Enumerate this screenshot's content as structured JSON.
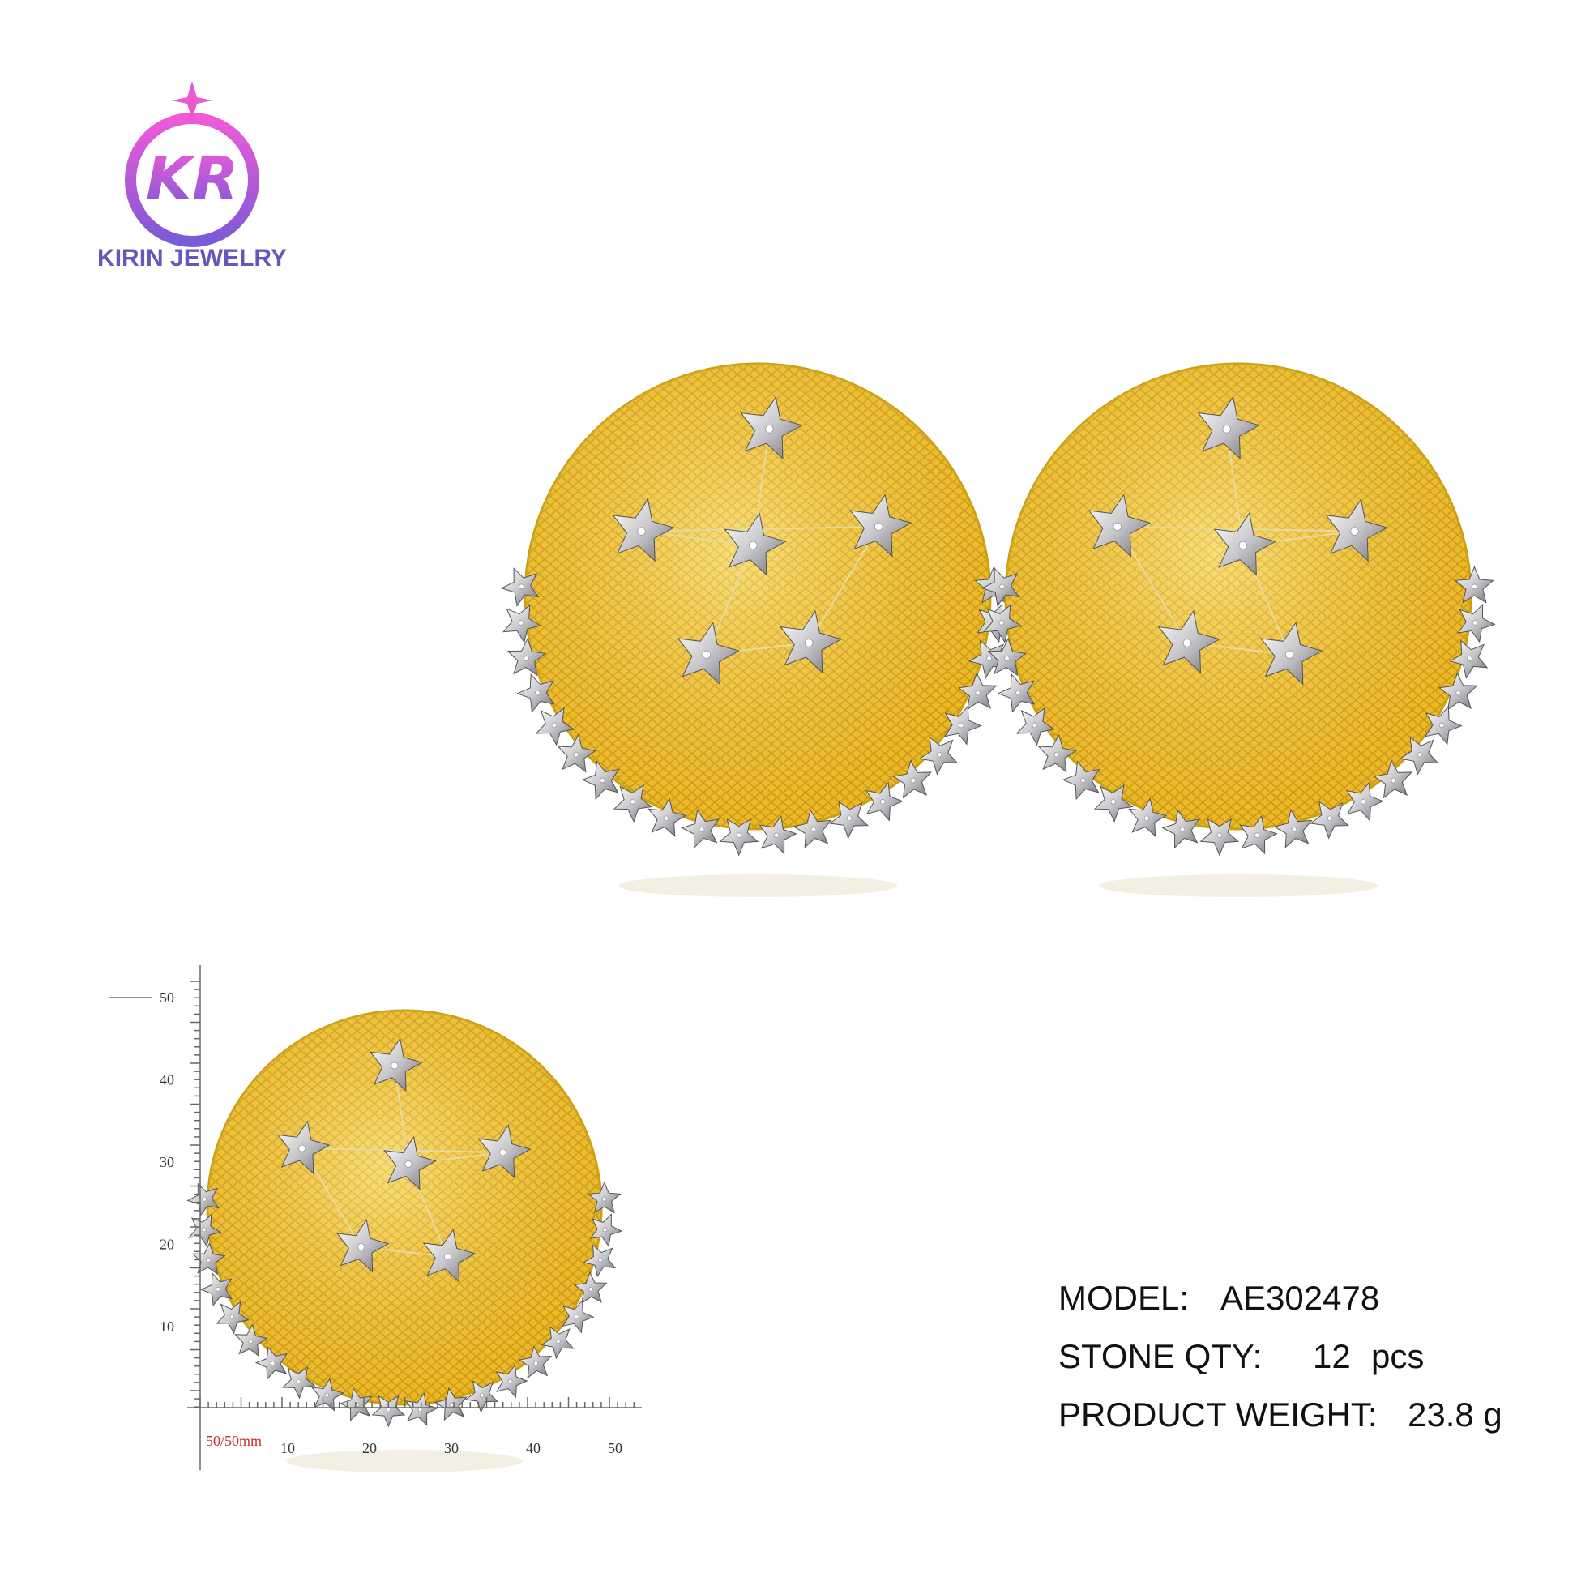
{
  "logo": {
    "monogram": "KR",
    "brand": "KIRIN JEWELRY"
  },
  "ruler": {
    "y_labels": [
      "50",
      "40",
      "30",
      "20",
      "10"
    ],
    "x_labels": [
      "10",
      "20",
      "30",
      "40",
      "50"
    ],
    "unit_label": "50/50mm"
  },
  "specs": [
    {
      "label": "MODEL:",
      "value": "AE302478"
    },
    {
      "label": "STONE QTY:",
      "value": "12",
      "unit": "pcs"
    },
    {
      "label": "PRODUCT WEIGHT:",
      "value": "23.8 g"
    }
  ]
}
